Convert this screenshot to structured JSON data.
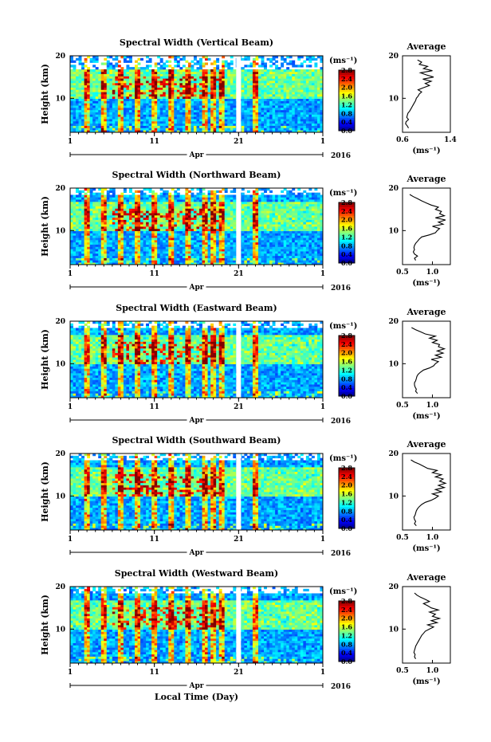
{
  "chart_data": [
    {
      "type": "heatmap",
      "title": "Spectral Width (Vertical Beam)",
      "ylabel": "Height (km)",
      "xlim": [
        1,
        31
      ],
      "ylim": [
        2,
        20
      ],
      "x_ticks": [
        "1",
        "11",
        "21",
        "1"
      ],
      "y_ticks": [
        "20",
        "10"
      ],
      "month_label": "Apr",
      "year_label": "2016",
      "colorbar": {
        "unit": "(ms⁻¹)",
        "ticks": [
          "2.8",
          "2.4",
          "2.0",
          "1.6",
          "1.2",
          "0.8",
          "0.4",
          "0.0"
        ],
        "range": [
          0,
          2.8
        ]
      },
      "data_gap_day": 21
    },
    {
      "type": "heatmap",
      "title": "Spectral Width (Northward Beam)",
      "ylabel": "Height (km)",
      "xlim": [
        1,
        31
      ],
      "ylim": [
        2,
        20
      ],
      "x_ticks": [
        "1",
        "11",
        "21",
        "1"
      ],
      "y_ticks": [
        "20",
        "10"
      ],
      "month_label": "Apr",
      "year_label": "2016",
      "colorbar": {
        "unit": "(ms⁻¹)",
        "ticks": [
          "2.8",
          "2.4",
          "2.0",
          "1.6",
          "1.2",
          "0.8",
          "0.4",
          "0.0"
        ],
        "range": [
          0,
          2.8
        ]
      },
      "data_gap_day": 21
    },
    {
      "type": "heatmap",
      "title": "Spectral Width (Eastward Beam)",
      "ylabel": "Height (km)",
      "xlim": [
        1,
        31
      ],
      "ylim": [
        2,
        20
      ],
      "x_ticks": [
        "1",
        "11",
        "21",
        "1"
      ],
      "y_ticks": [
        "20",
        "10"
      ],
      "month_label": "Apr",
      "year_label": "2016",
      "colorbar": {
        "unit": "(ms⁻¹)",
        "ticks": [
          "2.8",
          "2.4",
          "2.0",
          "1.6",
          "1.2",
          "0.8",
          "0.4",
          "0.0"
        ],
        "range": [
          0,
          2.8
        ]
      },
      "data_gap_day": 21
    },
    {
      "type": "heatmap",
      "title": "Spectral Width (Southward Beam)",
      "ylabel": "Height (km)",
      "xlim": [
        1,
        31
      ],
      "ylim": [
        2,
        20
      ],
      "x_ticks": [
        "1",
        "11",
        "21",
        "1"
      ],
      "y_ticks": [
        "20",
        "10"
      ],
      "month_label": "Apr",
      "year_label": "2016",
      "colorbar": {
        "unit": "(ms⁻¹)",
        "ticks": [
          "2.8",
          "2.4",
          "2.0",
          "1.6",
          "1.2",
          "0.8",
          "0.4",
          "0.0"
        ],
        "range": [
          0,
          2.8
        ]
      },
      "data_gap_day": 21
    },
    {
      "type": "heatmap",
      "title": "Spectral Width (Westward Beam)",
      "ylabel": "Height (km)",
      "xlim": [
        1,
        31
      ],
      "ylim": [
        2,
        20
      ],
      "x_ticks": [
        "1",
        "11",
        "21",
        "1"
      ],
      "y_ticks": [
        "20",
        "10"
      ],
      "month_label": "Apr",
      "year_label": "2016",
      "xlabel": "Local Time (Day)",
      "colorbar": {
        "unit": "(ms⁻¹)",
        "ticks": [
          "2.8",
          "2.4",
          "2.0",
          "1.6",
          "1.2",
          "0.8",
          "0.4",
          "0.0"
        ],
        "range": [
          0,
          2.8
        ]
      },
      "data_gap_day": 21
    },
    {
      "type": "line",
      "title": "Average",
      "xlabel": "(ms⁻¹)",
      "xlim": [
        0.6,
        1.4
      ],
      "ylim": [
        2,
        20
      ],
      "x_ticks": [
        "0.6",
        "1.4"
      ],
      "y_ticks": [
        "20",
        "10"
      ],
      "series": [
        {
          "x": [
            0.7,
            0.68,
            0.65,
            0.66,
            0.7,
            0.67,
            0.68,
            0.69,
            0.72,
            0.74,
            0.76,
            0.78,
            0.8,
            0.82,
            0.83,
            0.86,
            0.88,
            0.92,
            0.86,
            0.95,
            1.05,
            0.98,
            1.08,
            0.94,
            1.12,
            1.0,
            0.9,
            1.1,
            0.95,
            1.02,
            0.88,
            0.92,
            0.85
          ],
          "y": [
            3.0,
            3.5,
            4.0,
            4.5,
            5.0,
            5.5,
            6.0,
            6.5,
            7.0,
            7.5,
            8.0,
            8.5,
            9.0,
            9.5,
            10.0,
            10.5,
            11.0,
            11.5,
            12.0,
            12.5,
            13.0,
            13.5,
            14.0,
            14.5,
            15.0,
            15.5,
            16.0,
            16.5,
            17.0,
            17.5,
            18.0,
            18.5,
            19.0
          ]
        }
      ]
    },
    {
      "type": "line",
      "title": "Average",
      "xlabel": "(ms⁻¹)",
      "xlim": [
        0.5,
        1.3
      ],
      "ylim": [
        2,
        20
      ],
      "x_ticks": [
        "0.5",
        "1.0"
      ],
      "y_ticks": [
        "20",
        "10"
      ],
      "series": [
        {
          "x": [
            0.72,
            0.7,
            0.75,
            0.7,
            0.68,
            0.7,
            0.69,
            0.7,
            0.72,
            0.75,
            0.78,
            0.82,
            0.95,
            1.05,
            1.08,
            1.12,
            1.0,
            1.18,
            1.1,
            1.22,
            1.05,
            1.2,
            1.12,
            1.15,
            1.05,
            1.1,
            0.98,
            0.9,
            0.82,
            0.75,
            0.68,
            0.62
          ],
          "y": [
            3.0,
            3.5,
            4.0,
            4.5,
            5.0,
            5.5,
            6.0,
            6.5,
            7.0,
            7.5,
            8.0,
            8.5,
            9.0,
            9.5,
            10.0,
            10.5,
            11.0,
            11.5,
            12.0,
            12.5,
            13.0,
            13.5,
            14.0,
            14.5,
            15.0,
            15.5,
            16.0,
            16.5,
            17.0,
            17.5,
            18.0,
            18.5
          ]
        }
      ]
    },
    {
      "type": "line",
      "title": "Average",
      "xlabel": "(ms⁻¹)",
      "xlim": [
        0.5,
        1.3
      ],
      "ylim": [
        2,
        20
      ],
      "x_ticks": [
        "0.5",
        "1.0"
      ],
      "y_ticks": [
        "20",
        "10"
      ],
      "series": [
        {
          "x": [
            0.75,
            0.72,
            0.73,
            0.71,
            0.7,
            0.7,
            0.72,
            0.73,
            0.74,
            0.76,
            0.8,
            0.85,
            0.95,
            1.02,
            1.05,
            1.1,
            0.98,
            1.15,
            1.05,
            1.18,
            1.08,
            1.2,
            1.1,
            1.12,
            1.0,
            1.08,
            0.95,
            1.05,
            0.88,
            0.8,
            0.72,
            0.65
          ],
          "y": [
            3.0,
            3.5,
            4.0,
            4.5,
            5.0,
            5.5,
            6.0,
            6.5,
            7.0,
            7.5,
            8.0,
            8.5,
            9.0,
            9.5,
            10.0,
            10.5,
            11.0,
            11.5,
            12.0,
            12.5,
            13.0,
            13.5,
            14.0,
            14.5,
            15.0,
            15.5,
            16.0,
            16.5,
            17.0,
            17.5,
            18.0,
            18.5
          ]
        }
      ]
    },
    {
      "type": "line",
      "title": "Average",
      "xlabel": "(ms⁻¹)",
      "xlim": [
        0.5,
        1.3
      ],
      "ylim": [
        2,
        20
      ],
      "x_ticks": [
        "0.5",
        "1.0"
      ],
      "y_ticks": [
        "20",
        "10"
      ],
      "series": [
        {
          "x": [
            0.73,
            0.7,
            0.72,
            0.7,
            0.69,
            0.71,
            0.72,
            0.73,
            0.75,
            0.78,
            0.82,
            0.88,
            0.98,
            1.05,
            1.1,
            1.0,
            1.15,
            1.05,
            1.2,
            1.1,
            1.22,
            1.12,
            1.18,
            1.05,
            1.15,
            1.0,
            1.08,
            0.92,
            0.85,
            0.78,
            0.7,
            0.64
          ],
          "y": [
            3.0,
            3.5,
            4.0,
            4.5,
            5.0,
            5.5,
            6.0,
            6.5,
            7.0,
            7.5,
            8.0,
            8.5,
            9.0,
            9.5,
            10.0,
            10.5,
            11.0,
            11.5,
            12.0,
            12.5,
            13.0,
            13.5,
            14.0,
            14.5,
            15.0,
            15.5,
            16.0,
            16.5,
            17.0,
            17.5,
            18.0,
            18.5
          ]
        }
      ]
    },
    {
      "type": "line",
      "title": "Average",
      "xlabel": "(ms⁻¹)",
      "xlim": [
        0.5,
        1.3
      ],
      "ylim": [
        2,
        20
      ],
      "x_ticks": [
        "0.5",
        "1.0"
      ],
      "y_ticks": [
        "20",
        "10"
      ],
      "series": [
        {
          "x": [
            0.72,
            0.7,
            0.71,
            0.69,
            0.7,
            0.71,
            0.72,
            0.74,
            0.76,
            0.78,
            0.8,
            0.82,
            0.85,
            0.88,
            0.95,
            1.02,
            0.92,
            1.08,
            0.98,
            1.12,
            1.0,
            1.05,
            0.95,
            1.1,
            0.98,
            0.92,
            0.85,
            0.95,
            0.88,
            0.8,
            0.74,
            0.7
          ],
          "y": [
            3.0,
            3.5,
            4.0,
            4.5,
            5.0,
            5.5,
            6.0,
            6.5,
            7.0,
            7.5,
            8.0,
            8.5,
            9.0,
            9.5,
            10.0,
            10.5,
            11.0,
            11.5,
            12.0,
            12.5,
            13.0,
            13.5,
            14.0,
            14.5,
            15.0,
            15.5,
            16.0,
            16.5,
            17.0,
            17.5,
            18.0,
            18.5
          ]
        }
      ]
    }
  ]
}
